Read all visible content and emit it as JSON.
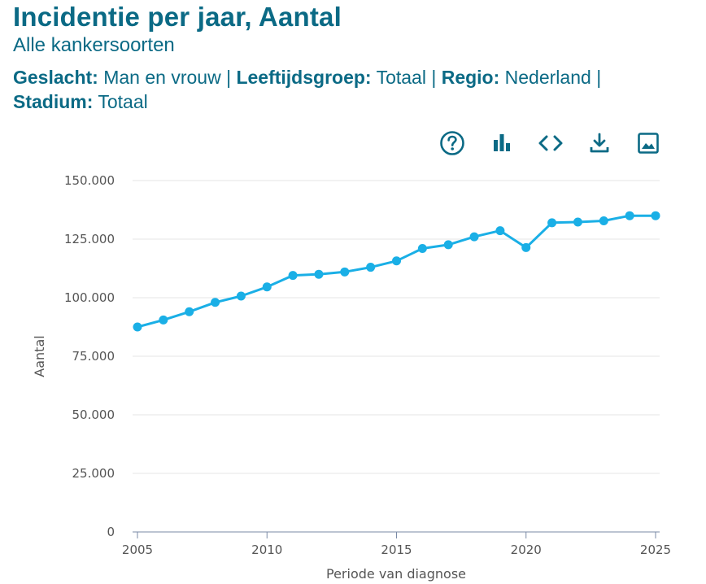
{
  "header": {
    "title": "Incidentie per jaar, Aantal",
    "subtitle": "Alle kankersoorten",
    "filters": [
      {
        "key": "Geslacht:",
        "value": "Man en vrouw"
      },
      {
        "key": "Leeftijdsgroep:",
        "value": "Totaal"
      },
      {
        "key": "Regio:",
        "value": "Nederland"
      },
      {
        "key": "Stadium:",
        "value": "Totaal"
      }
    ],
    "separator": "|"
  },
  "toolbar": {
    "icons": [
      "help-icon",
      "bar-chart-icon",
      "embed-code-icon",
      "download-icon",
      "image-icon"
    ]
  },
  "colors": {
    "brand": "#0b6a85",
    "series": "#1aafe6",
    "grid": "#e6e6e6",
    "axis": "#555555"
  },
  "chart_data": {
    "type": "line",
    "title": "Incidentie per jaar, Aantal",
    "xlabel": "Periode van diagnose",
    "ylabel": "Aantal",
    "xlim": [
      2005,
      2025
    ],
    "ylim": [
      0,
      150000
    ],
    "xticks": [
      2005,
      2010,
      2015,
      2020,
      2025
    ],
    "xtick_labels": [
      "2005",
      "2010",
      "2015",
      "2020",
      "2025"
    ],
    "yticks": [
      0,
      25000,
      50000,
      75000,
      100000,
      125000,
      150000
    ],
    "ytick_labels": [
      "0",
      "25.000",
      "50.000",
      "75.000",
      "100.000",
      "125.000",
      "150.000"
    ],
    "grid": true,
    "legend": "none",
    "series": [
      {
        "name": "Aantal",
        "x": [
          2005,
          2006,
          2007,
          2008,
          2009,
          2010,
          2011,
          2012,
          2013,
          2014,
          2015,
          2016,
          2017,
          2018,
          2019,
          2020,
          2021,
          2022,
          2023,
          2024,
          2025
        ],
        "values": [
          87500,
          90500,
          94000,
          98000,
          100700,
          104600,
          109500,
          110000,
          111000,
          113000,
          115700,
          121000,
          122600,
          126000,
          128600,
          121400,
          132000,
          132300,
          132800,
          135000,
          135000
        ]
      }
    ]
  }
}
